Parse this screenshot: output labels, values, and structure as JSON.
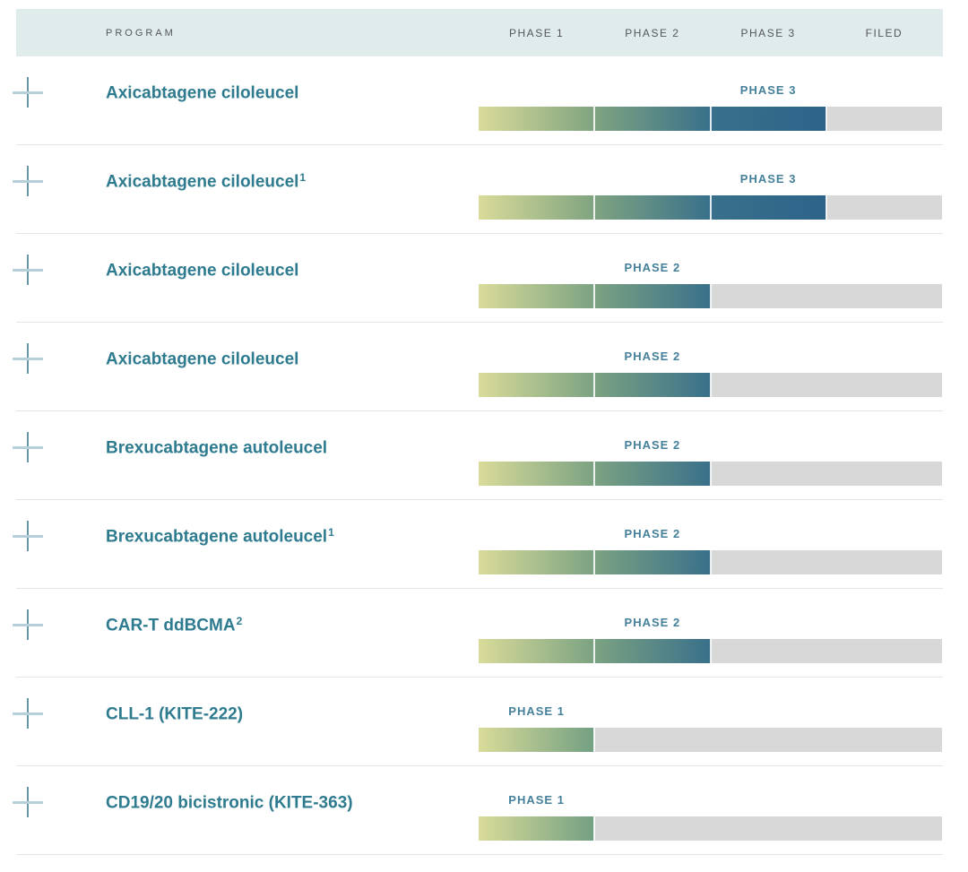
{
  "header": {
    "program_label": "PROGRAM",
    "columns": [
      "PHASE 1",
      "PHASE 2",
      "PHASE 3",
      "FILED"
    ]
  },
  "rows": [
    {
      "name": "Axicabtagene ciloleucel",
      "sup": "",
      "phase": 3,
      "phase_label": "PHASE 3"
    },
    {
      "name": "Axicabtagene ciloleucel",
      "sup": "1",
      "phase": 3,
      "phase_label": "PHASE 3"
    },
    {
      "name": "Axicabtagene ciloleucel",
      "sup": "",
      "phase": 2,
      "phase_label": "PHASE 2"
    },
    {
      "name": "Axicabtagene ciloleucel",
      "sup": "",
      "phase": 2,
      "phase_label": "PHASE 2"
    },
    {
      "name": "Brexucabtagene autoleucel",
      "sup": "",
      "phase": 2,
      "phase_label": "PHASE 2"
    },
    {
      "name": "Brexucabtagene autoleucel",
      "sup": "1",
      "phase": 2,
      "phase_label": "PHASE 2"
    },
    {
      "name": "CAR-T ddBCMA",
      "sup": "2",
      "phase": 2,
      "phase_label": "PHASE 2"
    },
    {
      "name": "CLL-1 (KITE-222)",
      "sup": "",
      "phase": 1,
      "phase_label": "PHASE 1"
    },
    {
      "name": "CD19/20 bicistronic (KITE-363)",
      "sup": "",
      "phase": 1,
      "phase_label": "PHASE 1"
    }
  ],
  "icons": {
    "expand": "plus-icon"
  },
  "colors": {
    "header_bg": "#e0ebeb",
    "header_text": "#53575a",
    "program_name": "#2e7b8f",
    "phase_label": "#44809a",
    "track_gray": "#d8d8d8",
    "row_divider": "#e4e4e4",
    "bar_gradient_start": "#d9db99",
    "bar_gradient_green": "#7ba282",
    "bar_gradient_teal": "#39708a",
    "bar_gradient_blue": "#2e6389",
    "plus_vertical": "#6a97a6",
    "plus_horizontal": "#b5d0d8"
  },
  "chart_data": {
    "type": "bar",
    "orientation": "horizontal",
    "title": "Clinical pipeline program phases",
    "categories": [
      "Axicabtagene ciloleucel",
      "Axicabtagene ciloleucel¹",
      "Axicabtagene ciloleucel",
      "Axicabtagene ciloleucel",
      "Brexucabtagene autoleucel",
      "Brexucabtagene autoleucel¹",
      "CAR-T ddBCMA²",
      "CLL-1 (KITE-222)",
      "CD19/20 bicistronic (KITE-363)"
    ],
    "values": [
      3,
      3,
      2,
      2,
      2,
      2,
      2,
      1,
      1
    ],
    "value_labels": [
      "PHASE 3",
      "PHASE 3",
      "PHASE 2",
      "PHASE 2",
      "PHASE 2",
      "PHASE 2",
      "PHASE 2",
      "PHASE 1",
      "PHASE 1"
    ],
    "xlabel": "",
    "ylabel": "",
    "x_ticks": [
      "PHASE 1",
      "PHASE 2",
      "PHASE 3",
      "FILED"
    ],
    "xlim": [
      0,
      4
    ],
    "grid": false,
    "legend_position": "none"
  }
}
